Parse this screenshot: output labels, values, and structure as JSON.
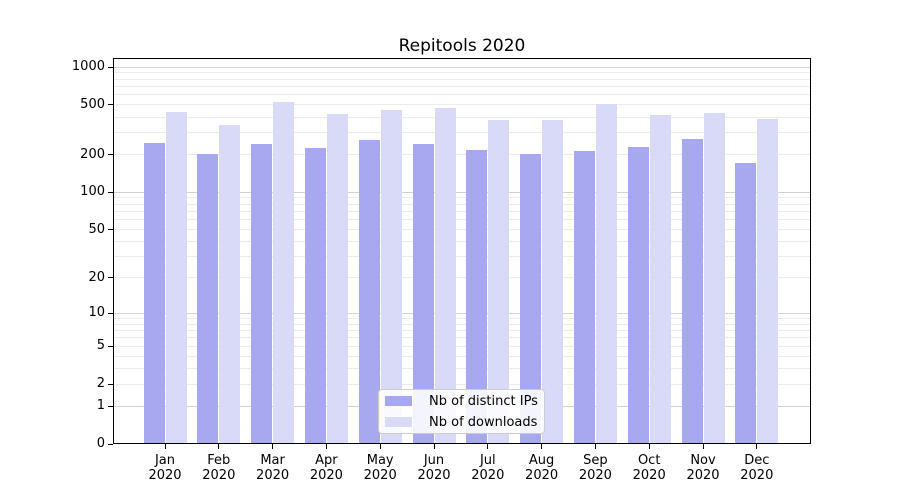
{
  "chart_data": {
    "type": "bar",
    "title": "Repitools 2020",
    "categories": [
      "Jan",
      "Feb",
      "Mar",
      "Apr",
      "May",
      "Jun",
      "Jul",
      "Aug",
      "Sep",
      "Oct",
      "Nov",
      "Dec"
    ],
    "year_label": "2020",
    "series": [
      {
        "name": "Nb of distinct IPs",
        "color": "#a8a8f0",
        "values": [
          246,
          202,
          244,
          228,
          264,
          245,
          217,
          201,
          215,
          230,
          266,
          171
        ]
      },
      {
        "name": "Nb of downloads",
        "color": "#d9d9f8",
        "values": [
          438,
          347,
          526,
          426,
          456,
          471,
          381,
          381,
          504,
          418,
          431,
          384
        ]
      }
    ],
    "yscale": "log1p",
    "ylim": [
      0,
      1160
    ],
    "yticks": [
      0,
      1,
      2,
      5,
      10,
      20,
      50,
      100,
      200,
      500,
      1000
    ],
    "ytick_labels": [
      "0",
      "1",
      "2",
      "5",
      "10",
      "20",
      "50",
      "100",
      "200",
      "500",
      "1000"
    ],
    "major_gridlines": [
      1,
      10,
      100,
      1000
    ],
    "grid": true,
    "legend_position": "lower-center-inside",
    "xlabel": "",
    "ylabel": "",
    "colors": {
      "axis": "#000000",
      "major_grid": "#d2d2d2",
      "minor_grid": "#ebebeb",
      "text": "#000000",
      "legend_border": "#cccccc",
      "legend_background": "#ffffff"
    }
  }
}
